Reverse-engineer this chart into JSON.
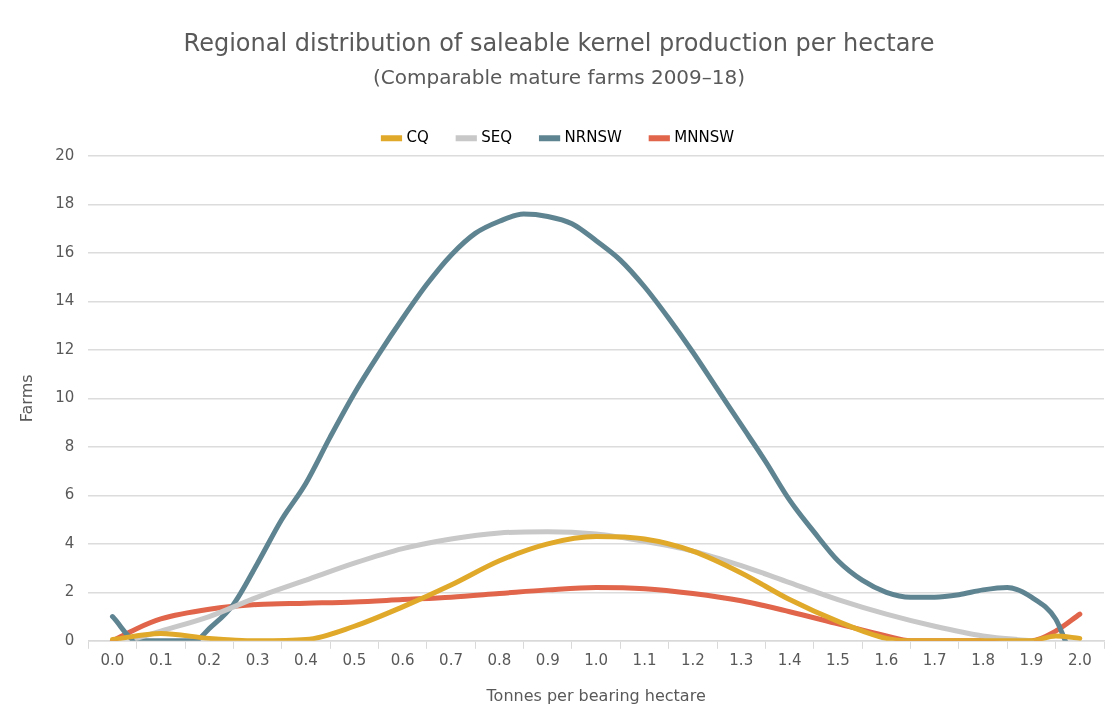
{
  "chart_data": {
    "type": "line",
    "title": "Regional distribution of saleable kernel production per hectare",
    "subtitle": "(Comparable mature farms 2009–18)",
    "xlabel": "Tonnes per bearing hectare",
    "ylabel": "Farms",
    "xlim": [
      -0.05,
      2.05
    ],
    "xticks": [
      {
        "value": -0.05,
        "label": null
      },
      {
        "value": 0,
        "label": "0.0"
      },
      {
        "value": 0.05,
        "label": null
      },
      {
        "value": 0.1,
        "label": "0.1"
      },
      {
        "value": 0.15,
        "label": null
      },
      {
        "value": 0.2,
        "label": "0.2"
      },
      {
        "value": 0.25,
        "label": null
      },
      {
        "value": 0.3,
        "label": "0.3"
      },
      {
        "value": 0.35,
        "label": null
      },
      {
        "value": 0.4,
        "label": "0.4"
      },
      {
        "value": 0.45,
        "label": null
      },
      {
        "value": 0.5,
        "label": "0.5"
      },
      {
        "value": 0.55,
        "label": null
      },
      {
        "value": 0.6,
        "label": "0.6"
      },
      {
        "value": 0.65,
        "label": null
      },
      {
        "value": 0.7,
        "label": "0.7"
      },
      {
        "value": 0.75,
        "label": null
      },
      {
        "value": 0.8,
        "label": "0.8"
      },
      {
        "value": 0.85,
        "label": null
      },
      {
        "value": 0.9,
        "label": "0.9"
      },
      {
        "value": 0.95,
        "label": null
      },
      {
        "value": 1,
        "label": "1.0"
      },
      {
        "value": 1.05,
        "label": null
      },
      {
        "value": 1.1,
        "label": "1.1"
      },
      {
        "value": 1.15,
        "label": null
      },
      {
        "value": 1.2,
        "label": "1.2"
      },
      {
        "value": 1.25,
        "label": null
      },
      {
        "value": 1.3,
        "label": "1.3"
      },
      {
        "value": 1.35,
        "label": null
      },
      {
        "value": 1.4,
        "label": "1.4"
      },
      {
        "value": 1.45,
        "label": null
      },
      {
        "value": 1.5,
        "label": "1.5"
      },
      {
        "value": 1.55,
        "label": null
      },
      {
        "value": 1.6,
        "label": "1.6"
      },
      {
        "value": 1.65,
        "label": null
      },
      {
        "value": 1.7,
        "label": "1.7"
      },
      {
        "value": 1.75,
        "label": null
      },
      {
        "value": 1.8,
        "label": "1.8"
      },
      {
        "value": 1.85,
        "label": null
      },
      {
        "value": 1.9,
        "label": "1.9"
      },
      {
        "value": 1.95,
        "label": null
      },
      {
        "value": 2,
        "label": "2.0"
      },
      {
        "value": 2.05,
        "label": null
      }
    ],
    "ylim": [
      0,
      20
    ],
    "yticks": [
      0,
      2,
      4,
      6,
      8,
      10,
      12,
      14,
      16,
      18,
      20
    ],
    "grid": "y",
    "legend": "top",
    "marker": "none",
    "line_style": "solid",
    "series": [
      {
        "name": "CQ",
        "color": "#e0a92a",
        "x": [
          0,
          0.1,
          0.2,
          0.3,
          0.4,
          0.5,
          0.6,
          0.7,
          0.8,
          0.9,
          1.0,
          1.1,
          1.2,
          1.3,
          1.4,
          1.5,
          1.6,
          1.65,
          1.7,
          1.8,
          1.9,
          1.95,
          2.0
        ],
        "values": [
          0.05,
          0.3,
          0.1,
          0,
          0.05,
          0.6,
          1.4,
          2.3,
          3.3,
          4.0,
          4.3,
          4.2,
          3.7,
          2.8,
          1.7,
          0.8,
          0.1,
          0,
          0,
          0,
          0,
          0.2,
          0.1
        ]
      },
      {
        "name": "SEQ",
        "color": "#c8c8c8",
        "x": [
          0.05,
          0.1,
          0.2,
          0.3,
          0.4,
          0.5,
          0.6,
          0.7,
          0.8,
          0.9,
          1.0,
          1.1,
          1.2,
          1.3,
          1.4,
          1.5,
          1.6,
          1.7,
          1.8,
          1.9
        ],
        "values": [
          0.1,
          0.4,
          1.0,
          1.8,
          2.5,
          3.2,
          3.8,
          4.2,
          4.45,
          4.5,
          4.4,
          4.1,
          3.7,
          3.1,
          2.4,
          1.7,
          1.1,
          0.6,
          0.2,
          0
        ]
      },
      {
        "name": "NRNSW",
        "color": "#5f8491",
        "x": [
          0,
          0.05,
          0.1,
          0.17,
          0.2,
          0.25,
          0.3,
          0.35,
          0.4,
          0.45,
          0.5,
          0.55,
          0.6,
          0.65,
          0.7,
          0.75,
          0.8,
          0.85,
          0.9,
          0.95,
          1.0,
          1.05,
          1.1,
          1.15,
          1.2,
          1.25,
          1.3,
          1.35,
          1.4,
          1.45,
          1.5,
          1.55,
          1.6,
          1.65,
          1.7,
          1.75,
          1.8,
          1.85,
          1.9,
          1.95,
          1.97
        ],
        "values": [
          1.0,
          0,
          0,
          0,
          0.5,
          1.5,
          3.2,
          5.0,
          6.5,
          8.4,
          10.2,
          11.8,
          13.3,
          14.7,
          15.9,
          16.8,
          17.3,
          17.6,
          17.5,
          17.2,
          16.5,
          15.7,
          14.6,
          13.3,
          11.9,
          10.4,
          8.9,
          7.4,
          5.8,
          4.5,
          3.3,
          2.5,
          2.0,
          1.8,
          1.8,
          1.9,
          2.1,
          2.2,
          1.8,
          0.9,
          0
        ]
      },
      {
        "name": "MNNSW",
        "color": "#e0654a",
        "x": [
          0,
          0.05,
          0.1,
          0.2,
          0.3,
          0.4,
          0.5,
          0.6,
          0.7,
          0.8,
          0.9,
          1.0,
          1.1,
          1.2,
          1.3,
          1.4,
          1.5,
          1.6,
          1.65,
          1.7,
          1.8,
          1.9,
          1.95,
          2.0
        ],
        "values": [
          0,
          0.5,
          0.9,
          1.3,
          1.5,
          1.55,
          1.6,
          1.7,
          1.8,
          1.95,
          2.1,
          2.2,
          2.15,
          1.95,
          1.65,
          1.2,
          0.7,
          0.2,
          0,
          0,
          0,
          0,
          0.4,
          1.1
        ]
      }
    ]
  }
}
